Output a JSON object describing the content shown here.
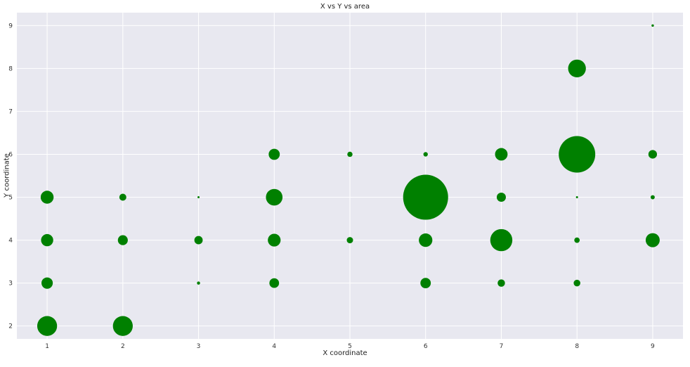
{
  "chart_data": {
    "type": "scatter",
    "title": "X vs Y vs area",
    "xlabel": "X coordinate",
    "ylabel": "Y coordinate",
    "xlim": [
      0.6,
      9.4
    ],
    "ylim": [
      1.7,
      9.3
    ],
    "xticks": [
      1,
      2,
      3,
      4,
      5,
      6,
      7,
      8,
      9
    ],
    "yticks": [
      2,
      3,
      4,
      5,
      6,
      7,
      8,
      9
    ],
    "grid": true,
    "color": "#008000",
    "background": "#e8e8f0",
    "points": [
      {
        "x": 1,
        "y": 2,
        "area": 800
      },
      {
        "x": 1,
        "y": 3,
        "area": 260
      },
      {
        "x": 1,
        "y": 4,
        "area": 300
      },
      {
        "x": 1,
        "y": 5,
        "area": 340
      },
      {
        "x": 2,
        "y": 2,
        "area": 800
      },
      {
        "x": 2,
        "y": 4,
        "area": 200
      },
      {
        "x": 2,
        "y": 5,
        "area": 100
      },
      {
        "x": 3,
        "y": 3,
        "area": 20
      },
      {
        "x": 3,
        "y": 4,
        "area": 140
      },
      {
        "x": 3,
        "y": 5,
        "area": 8
      },
      {
        "x": 4,
        "y": 3,
        "area": 190
      },
      {
        "x": 4,
        "y": 4,
        "area": 330
      },
      {
        "x": 4,
        "y": 5,
        "area": 560
      },
      {
        "x": 4,
        "y": 6,
        "area": 250
      },
      {
        "x": 5,
        "y": 4,
        "area": 80
      },
      {
        "x": 5,
        "y": 6,
        "area": 55
      },
      {
        "x": 6,
        "y": 3,
        "area": 220
      },
      {
        "x": 6,
        "y": 4,
        "area": 370
      },
      {
        "x": 6,
        "y": 5,
        "area": 4100
      },
      {
        "x": 6,
        "y": 6,
        "area": 40
      },
      {
        "x": 7,
        "y": 3,
        "area": 110
      },
      {
        "x": 7,
        "y": 4,
        "area": 990
      },
      {
        "x": 7,
        "y": 5,
        "area": 170
      },
      {
        "x": 7,
        "y": 6,
        "area": 320
      },
      {
        "x": 8,
        "y": 3,
        "area": 90
      },
      {
        "x": 8,
        "y": 4,
        "area": 60
      },
      {
        "x": 8,
        "y": 5,
        "area": 8
      },
      {
        "x": 8,
        "y": 6,
        "area": 2700
      },
      {
        "x": 8,
        "y": 8,
        "area": 640
      },
      {
        "x": 9,
        "y": 4,
        "area": 400
      },
      {
        "x": 9,
        "y": 5,
        "area": 35
      },
      {
        "x": 9,
        "y": 6,
        "area": 150
      },
      {
        "x": 9,
        "y": 9,
        "area": 12
      }
    ]
  }
}
